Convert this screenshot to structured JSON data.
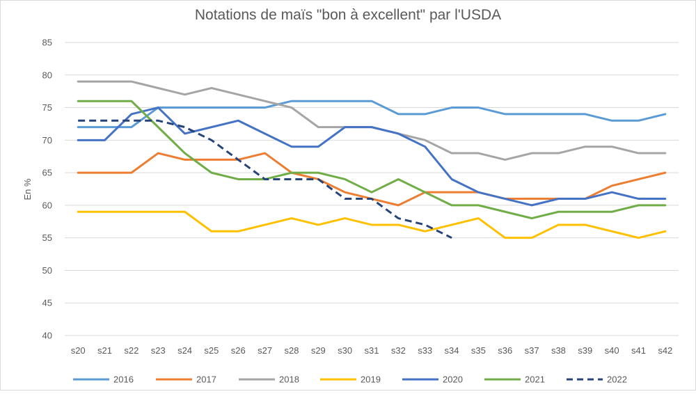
{
  "chart_data": {
    "type": "line",
    "title": "Notations de maïs \"bon à excellent\" par l'USDA",
    "xlabel": "",
    "ylabel": "En %",
    "ylim": [
      40,
      85
    ],
    "yticks": [
      40,
      45,
      50,
      55,
      60,
      65,
      70,
      75,
      80,
      85
    ],
    "grid": true,
    "legend_position": "bottom",
    "categories": [
      "s20",
      "s21",
      "s22",
      "s23",
      "s24",
      "s25",
      "s26",
      "s27",
      "s28",
      "s29",
      "s30",
      "s31",
      "s32",
      "s33",
      "s34",
      "s35",
      "s36",
      "s37",
      "s38",
      "s39",
      "s40",
      "s41",
      "s42"
    ],
    "series": [
      {
        "name": "2016",
        "color": "#5b9bd5",
        "dashed": false,
        "values": [
          72,
          72,
          72,
          75,
          75,
          75,
          75,
          75,
          76,
          76,
          76,
          76,
          74,
          74,
          75,
          75,
          74,
          74,
          74,
          74,
          73,
          73,
          74
        ]
      },
      {
        "name": "2017",
        "color": "#ed7d31",
        "dashed": false,
        "values": [
          65,
          65,
          65,
          68,
          67,
          67,
          67,
          68,
          65,
          64,
          62,
          61,
          60,
          62,
          62,
          62,
          61,
          61,
          61,
          61,
          63,
          64,
          65
        ]
      },
      {
        "name": "2018",
        "color": "#a5a5a5",
        "dashed": false,
        "values": [
          79,
          79,
          79,
          78,
          77,
          78,
          77,
          76,
          75,
          72,
          72,
          72,
          71,
          70,
          68,
          68,
          67,
          68,
          68,
          69,
          69,
          68,
          68
        ]
      },
      {
        "name": "2019",
        "color": "#ffc000",
        "dashed": false,
        "values": [
          59,
          59,
          59,
          59,
          59,
          56,
          56,
          57,
          58,
          57,
          58,
          57,
          57,
          56,
          57,
          58,
          55,
          55,
          57,
          57,
          56,
          55,
          56
        ]
      },
      {
        "name": "2020",
        "color": "#4472c4",
        "dashed": false,
        "values": [
          70,
          70,
          74,
          75,
          71,
          72,
          73,
          71,
          69,
          69,
          72,
          72,
          71,
          69,
          64,
          62,
          61,
          60,
          61,
          61,
          62,
          61,
          61
        ]
      },
      {
        "name": "2021",
        "color": "#70ad47",
        "dashed": false,
        "values": [
          76,
          76,
          76,
          72,
          68,
          65,
          64,
          64,
          65,
          65,
          64,
          62,
          64,
          62,
          60,
          60,
          59,
          58,
          59,
          59,
          59,
          60,
          60
        ]
      },
      {
        "name": "2022",
        "color": "#264478",
        "dashed": true,
        "values": [
          73,
          73,
          73,
          73,
          72,
          70,
          67,
          64,
          64,
          64,
          61,
          61,
          58,
          57,
          55,
          null,
          null,
          null,
          null,
          null,
          null,
          null,
          null
        ]
      }
    ]
  }
}
